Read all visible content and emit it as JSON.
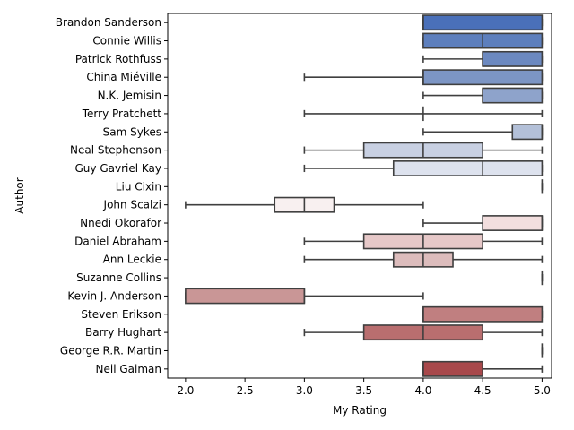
{
  "chart_data": {
    "type": "boxplot",
    "orientation": "horizontal",
    "xlabel": "My Rating",
    "ylabel": "Author",
    "xlim": [
      1.85,
      5.08
    ],
    "xticks": [
      2.0,
      2.5,
      3.0,
      3.5,
      4.0,
      4.5,
      5.0
    ],
    "xtick_labels": [
      "2.0",
      "2.5",
      "3.0",
      "3.5",
      "4.0",
      "4.5",
      "5.0"
    ],
    "grid": false,
    "legend": "none",
    "authors": [
      {
        "name": "Brandon Sanderson",
        "min": 4.0,
        "q1": 4.0,
        "median": 4.0,
        "q3": 5.0,
        "max": 5.0,
        "color": "#4a70b9"
      },
      {
        "name": "Connie Willis",
        "min": 4.0,
        "q1": 4.0,
        "median": 4.5,
        "q3": 5.0,
        "max": 5.0,
        "color": "#5d7fbd"
      },
      {
        "name": "Patrick Rothfuss",
        "min": 4.0,
        "q1": 4.5,
        "median": 4.5,
        "q3": 5.0,
        "max": 5.0,
        "color": "#6c89c0"
      },
      {
        "name": "China Miéville",
        "min": 3.0,
        "q1": 4.0,
        "median": 4.0,
        "q3": 5.0,
        "max": 5.0,
        "color": "#7c95c4"
      },
      {
        "name": "N.K. Jemisin",
        "min": 4.0,
        "q1": 4.5,
        "median": 4.5,
        "q3": 5.0,
        "max": 5.0,
        "color": "#8ea3cb"
      },
      {
        "name": "Terry Pratchett",
        "min": 3.0,
        "q1": 4.0,
        "median": 4.0,
        "q3": 4.0,
        "max": 5.0,
        "color": "#a0b0d1"
      },
      {
        "name": "Sam Sykes",
        "min": 4.0,
        "q1": 4.75,
        "median": 5.0,
        "q3": 5.0,
        "max": 5.0,
        "color": "#b3c0d8"
      },
      {
        "name": "Neal Stephenson",
        "min": 3.0,
        "q1": 3.5,
        "median": 4.0,
        "q3": 4.5,
        "max": 5.0,
        "color": "#c8d0e2"
      },
      {
        "name": "Guy Gavriel Kay",
        "min": 3.0,
        "q1": 3.75,
        "median": 4.5,
        "q3": 5.0,
        "max": 5.0,
        "color": "#dde2ee"
      },
      {
        "name": "Liu Cixin",
        "min": 5.0,
        "q1": 5.0,
        "median": 5.0,
        "q3": 5.0,
        "max": 5.0,
        "color": "#eaedf4"
      },
      {
        "name": "John Scalzi",
        "min": 2.0,
        "q1": 2.75,
        "median": 3.0,
        "q3": 3.25,
        "max": 4.0,
        "color": "#f8f0f0"
      },
      {
        "name": "Nnedi Okorafor",
        "min": 4.0,
        "q1": 4.5,
        "median": 5.0,
        "q3": 5.0,
        "max": 5.0,
        "color": "#f2dede"
      },
      {
        "name": "Daniel Abraham",
        "min": 3.0,
        "q1": 3.5,
        "median": 4.0,
        "q3": 4.5,
        "max": 5.0,
        "color": "#e6c8c8"
      },
      {
        "name": "Ann Leckie",
        "min": 3.0,
        "q1": 3.75,
        "median": 4.0,
        "q3": 4.25,
        "max": 5.0,
        "color": "#dcbcbc"
      },
      {
        "name": "Suzanne Collins",
        "min": 5.0,
        "q1": 5.0,
        "median": 5.0,
        "q3": 5.0,
        "max": 5.0,
        "color": "#d4aeae"
      },
      {
        "name": "Kevin J. Anderson",
        "min": 2.0,
        "q1": 2.0,
        "median": 3.0,
        "q3": 3.0,
        "max": 4.0,
        "color": "#c99696"
      },
      {
        "name": "Steven Erikson",
        "min": 4.0,
        "q1": 4.0,
        "median": 4.0,
        "q3": 5.0,
        "max": 5.0,
        "color": "#c07f80"
      },
      {
        "name": "Barry Hughart",
        "min": 3.0,
        "q1": 3.5,
        "median": 4.0,
        "q3": 4.5,
        "max": 5.0,
        "color": "#b96e6f"
      },
      {
        "name": "George R.R. Martin",
        "min": 5.0,
        "q1": 5.0,
        "median": 5.0,
        "q3": 5.0,
        "max": 5.0,
        "color": "#b25f61"
      },
      {
        "name": "Neil Gaiman",
        "min": 4.0,
        "q1": 4.0,
        "median": 4.0,
        "q3": 4.5,
        "max": 5.0,
        "color": "#a8484b"
      }
    ]
  }
}
